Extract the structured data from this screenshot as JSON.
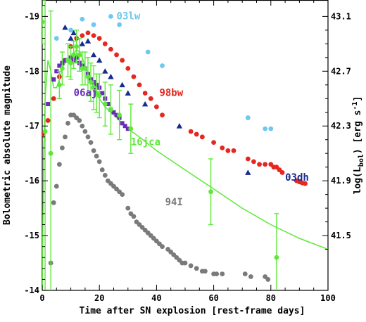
{
  "chart_data": {
    "type": "scatter",
    "xlabel": "Time after SN explosion [rest-frame days]",
    "ylabel_left": "Bolometric absolute magnitude",
    "ylabel_right_parts": [
      "log(L",
      "bol",
      ") [erg s",
      "-1",
      "]"
    ],
    "xlim": [
      0,
      100
    ],
    "ylim_mag": [
      -14,
      -19.3
    ],
    "ylim_loglum_ticks": [
      41.5,
      41.9,
      42.3,
      42.7,
      43.1
    ],
    "x_ticks": [
      "0",
      "20",
      "40",
      "60",
      "80",
      "100"
    ],
    "y_left_ticks": [
      "-19",
      "-18",
      "-17",
      "-16",
      "-15",
      "-14"
    ],
    "y_right_ticks": [
      "43.1",
      "42.7",
      "42.3",
      "41.9",
      "41.5"
    ],
    "series": [
      {
        "name": "03lw",
        "color": "#6ec8f0",
        "marker": "circle",
        "points": [
          [
            0,
            -18.9
          ],
          [
            5,
            -18.6
          ],
          [
            10,
            -18.75
          ],
          [
            14,
            -18.95
          ],
          [
            18,
            -18.85
          ],
          [
            24,
            -19.0
          ],
          [
            27,
            -18.85
          ],
          [
            37,
            -18.35
          ],
          [
            42,
            -18.1
          ],
          [
            72,
            -17.15
          ],
          [
            78,
            -16.95
          ],
          [
            80,
            -16.95
          ]
        ]
      },
      {
        "name": "98bw",
        "color": "#e6261f",
        "marker": "circle",
        "points": [
          [
            0,
            -16.85
          ],
          [
            2,
            -17.1
          ],
          [
            4,
            -17.5
          ],
          [
            6,
            -17.9
          ],
          [
            8,
            -18.2
          ],
          [
            10,
            -18.45
          ],
          [
            12,
            -18.6
          ],
          [
            14,
            -18.65
          ],
          [
            16,
            -18.7
          ],
          [
            18,
            -18.65
          ],
          [
            20,
            -18.6
          ],
          [
            22,
            -18.5
          ],
          [
            24,
            -18.4
          ],
          [
            26,
            -18.3
          ],
          [
            28,
            -18.2
          ],
          [
            30,
            -18.05
          ],
          [
            32,
            -17.9
          ],
          [
            34,
            -17.75
          ],
          [
            36,
            -17.6
          ],
          [
            38,
            -17.5
          ],
          [
            40,
            -17.35
          ],
          [
            42,
            -17.2
          ],
          [
            52,
            -16.9
          ],
          [
            54,
            -16.85
          ],
          [
            56,
            -16.8
          ],
          [
            60,
            -16.7
          ],
          [
            63,
            -16.6
          ],
          [
            65,
            -16.55
          ],
          [
            67,
            -16.55
          ],
          [
            72,
            -16.4
          ],
          [
            74,
            -16.35
          ],
          [
            76,
            -16.3
          ],
          [
            78,
            -16.3
          ],
          [
            80,
            -16.3
          ],
          [
            81,
            -16.25
          ],
          [
            82,
            -16.25
          ],
          [
            83,
            -16.2
          ],
          [
            84,
            -16.15
          ],
          [
            89,
            -16.0
          ],
          [
            90,
            -15.98
          ],
          [
            91,
            -15.96
          ],
          [
            92,
            -15.95
          ]
        ]
      },
      {
        "name": "03dh",
        "color": "#1a2b8f",
        "marker": "triangle",
        "points": [
          [
            8,
            -18.8
          ],
          [
            10,
            -18.6
          ],
          [
            11,
            -18.7
          ],
          [
            14,
            -18.5
          ],
          [
            16,
            -18.55
          ],
          [
            18,
            -18.3
          ],
          [
            20,
            -18.2
          ],
          [
            22,
            -18.0
          ],
          [
            24,
            -17.9
          ],
          [
            28,
            -17.75
          ],
          [
            30,
            -17.6
          ],
          [
            36,
            -17.4
          ],
          [
            48,
            -17.0
          ],
          [
            72,
            -16.15
          ]
        ]
      },
      {
        "name": "06aj",
        "color": "#6a2cb8",
        "marker": "square",
        "points": [
          [
            2,
            -17.4
          ],
          [
            4,
            -17.85
          ],
          [
            5,
            -18.0
          ],
          [
            6,
            -18.1
          ],
          [
            7,
            -18.15
          ],
          [
            8,
            -18.2
          ],
          [
            9,
            -18.2
          ],
          [
            10,
            -18.25
          ],
          [
            11,
            -18.2
          ],
          [
            12,
            -18.25
          ],
          [
            13,
            -18.15
          ],
          [
            14,
            -18.1
          ],
          [
            15,
            -18.05
          ],
          [
            16,
            -17.95
          ],
          [
            17,
            -17.85
          ],
          [
            18,
            -17.8
          ],
          [
            19,
            -17.75
          ],
          [
            20,
            -17.7
          ],
          [
            21,
            -17.6
          ],
          [
            22,
            -17.5
          ],
          [
            23,
            -17.4
          ],
          [
            24,
            -17.3
          ],
          [
            25,
            -17.25
          ],
          [
            26,
            -17.2
          ],
          [
            27,
            -17.15
          ],
          [
            28,
            -17.05
          ],
          [
            29,
            -17.0
          ],
          [
            30,
            -16.95
          ]
        ]
      },
      {
        "name": "94I",
        "color": "#7a7a7a",
        "marker": "circle",
        "points": [
          [
            3,
            -14.5
          ],
          [
            4,
            -15.6
          ],
          [
            5,
            -15.9
          ],
          [
            6,
            -16.3
          ],
          [
            7,
            -16.6
          ],
          [
            8,
            -16.8
          ],
          [
            9,
            -17.05
          ],
          [
            10,
            -17.2
          ],
          [
            11,
            -17.2
          ],
          [
            12,
            -17.15
          ],
          [
            13,
            -17.1
          ],
          [
            14,
            -17.0
          ],
          [
            15,
            -16.9
          ],
          [
            16,
            -16.8
          ],
          [
            17,
            -16.7
          ],
          [
            18,
            -16.55
          ],
          [
            19,
            -16.45
          ],
          [
            20,
            -16.35
          ],
          [
            21,
            -16.2
          ],
          [
            22,
            -16.1
          ],
          [
            23,
            -16.0
          ],
          [
            24,
            -15.95
          ],
          [
            25,
            -15.9
          ],
          [
            26,
            -15.85
          ],
          [
            27,
            -15.8
          ],
          [
            28,
            -15.75
          ],
          [
            30,
            -15.5
          ],
          [
            31,
            -15.4
          ],
          [
            32,
            -15.35
          ],
          [
            33,
            -15.25
          ],
          [
            34,
            -15.2
          ],
          [
            35,
            -15.15
          ],
          [
            36,
            -15.1
          ],
          [
            37,
            -15.05
          ],
          [
            38,
            -15.0
          ],
          [
            39,
            -14.95
          ],
          [
            40,
            -14.9
          ],
          [
            41,
            -14.85
          ],
          [
            42,
            -14.8
          ],
          [
            44,
            -14.75
          ],
          [
            45,
            -14.7
          ],
          [
            46,
            -14.65
          ],
          [
            47,
            -14.6
          ],
          [
            48,
            -14.55
          ],
          [
            49,
            -14.5
          ],
          [
            50,
            -14.5
          ],
          [
            52,
            -14.45
          ],
          [
            54,
            -14.4
          ],
          [
            56,
            -14.35
          ],
          [
            57,
            -14.35
          ],
          [
            60,
            -14.3
          ],
          [
            61,
            -14.3
          ],
          [
            63,
            -14.3
          ],
          [
            71,
            -14.3
          ],
          [
            73,
            -14.25
          ],
          [
            78,
            -14.25
          ],
          [
            79,
            -14.2
          ]
        ]
      },
      {
        "name": "16jca",
        "color": "#5ee83a",
        "marker": "circle-errorbar",
        "points": [
          [
            0,
            -18.9,
            0.4
          ],
          [
            1,
            -16.9,
            2.9
          ],
          [
            3,
            -16.5,
            2.6
          ],
          [
            6,
            -17.75,
            0.25
          ],
          [
            7,
            -18.05,
            0.3
          ],
          [
            9,
            -18.2,
            0.3
          ],
          [
            10,
            -18.15,
            0.3
          ],
          [
            11,
            -18.3,
            0.25
          ],
          [
            12,
            -18.45,
            0.3
          ],
          [
            13,
            -18.3,
            0.3
          ],
          [
            14,
            -18.05,
            0.3
          ],
          [
            15,
            -18.05,
            0.3
          ],
          [
            16,
            -17.9,
            0.35
          ],
          [
            17,
            -17.8,
            0.35
          ],
          [
            18,
            -17.7,
            0.4
          ],
          [
            19,
            -17.6,
            0.35
          ],
          [
            20,
            -17.55,
            0.4
          ],
          [
            22,
            -17.4,
            0.4
          ],
          [
            24,
            -17.3,
            0.45
          ],
          [
            27,
            -17.2,
            0.45
          ],
          [
            31,
            -16.95,
            0.45
          ],
          [
            59,
            -15.8,
            0.6
          ],
          [
            82,
            -14.6,
            0.8
          ]
        ]
      }
    ],
    "model_curve_16jca": {
      "color": "#5ee83a",
      "points": [
        [
          0,
          -14.0
        ],
        [
          0.5,
          -16.5
        ],
        [
          1,
          -17.5
        ],
        [
          2,
          -18.2
        ],
        [
          3,
          -18.0
        ],
        [
          4,
          -17.7
        ],
        [
          5,
          -17.7
        ],
        [
          6,
          -17.85
        ],
        [
          7,
          -18.05
        ],
        [
          8,
          -18.15
        ],
        [
          9,
          -18.2
        ],
        [
          10,
          -18.2
        ],
        [
          11,
          -18.3
        ],
        [
          12,
          -18.4
        ],
        [
          13,
          -18.35
        ],
        [
          14,
          -18.25
        ],
        [
          15,
          -18.1
        ],
        [
          16,
          -17.95
        ],
        [
          18,
          -17.7
        ],
        [
          20,
          -17.5
        ],
        [
          22,
          -17.35
        ],
        [
          24,
          -17.25
        ],
        [
          26,
          -17.15
        ],
        [
          28,
          -17.05
        ],
        [
          30,
          -16.95
        ],
        [
          34,
          -16.8
        ],
        [
          40,
          -16.55
        ],
        [
          50,
          -16.2
        ],
        [
          60,
          -15.85
        ],
        [
          70,
          -15.5
        ],
        [
          80,
          -15.2
        ],
        [
          90,
          -14.95
        ],
        [
          100,
          -14.75
        ]
      ]
    },
    "labels": [
      {
        "text": "03lw",
        "series": "03lw",
        "at": [
          26,
          -18.95
        ]
      },
      {
        "text": "98bw",
        "series": "98bw",
        "at": [
          41,
          -17.55
        ]
      },
      {
        "text": "06aj",
        "series": "06aj",
        "at": [
          11,
          -17.55
        ]
      },
      {
        "text": "16jca",
        "series": "16jca",
        "at": [
          31,
          -16.65
        ]
      },
      {
        "text": "03dh",
        "series": "03dh",
        "at": [
          85,
          -16.0
        ]
      },
      {
        "text": "94I",
        "series": "94I",
        "at": [
          43,
          -15.55
        ]
      }
    ]
  }
}
